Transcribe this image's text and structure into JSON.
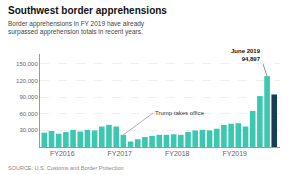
{
  "chart_data": {
    "type": "bar",
    "title": "Southwest border apprehensions",
    "subtitle": "Border apprehensions in FY 2019 have already surpassed apprehension totals in recent years.",
    "source": "SOURCE: U.S. Customs and Border Protection",
    "categories": [
      null,
      null,
      "FY2016",
      null,
      null,
      null,
      null,
      null,
      null,
      null,
      "FY2017",
      null,
      null,
      null,
      null,
      null,
      null,
      null,
      "FY2018",
      null,
      null,
      null,
      null,
      null,
      null,
      null,
      "FY2019",
      null,
      null,
      null,
      null,
      null,
      null
    ],
    "values": [
      26000,
      29000,
      24000,
      27000,
      31000,
      28000,
      31000,
      30000,
      37000,
      40000,
      37000,
      22000,
      10000,
      14000,
      18000,
      20000,
      22000,
      22000,
      23000,
      22000,
      27000,
      30000,
      31000,
      30000,
      33000,
      40000,
      42000,
      43000,
      37000,
      65000,
      92000,
      128000,
      94897
    ],
    "colors": [
      "#3cc8b0",
      "#3cc8b0",
      "#3cc8b0",
      "#3cc8b0",
      "#3cc8b0",
      "#3cc8b0",
      "#3cc8b0",
      "#3cc8b0",
      "#3cc8b0",
      "#3cc8b0",
      "#3cc8b0",
      "#3cc8b0",
      "#3cc8b0",
      "#3cc8b0",
      "#3cc8b0",
      "#3cc8b0",
      "#3cc8b0",
      "#3cc8b0",
      "#3cc8b0",
      "#3cc8b0",
      "#3cc8b0",
      "#3cc8b0",
      "#3cc8b0",
      "#3cc8b0",
      "#3cc8b0",
      "#3cc8b0",
      "#3cc8b0",
      "#3cc8b0",
      "#3cc8b0",
      "#3cc8b0",
      "#3cc8b0",
      "#3cc8b0",
      "#1b3d52"
    ],
    "ylim": [
      0,
      168000
    ],
    "yticks": [
      {
        "value": 30000,
        "label": "30,000"
      },
      {
        "value": 60000,
        "label": "60,000"
      },
      {
        "value": 90000,
        "label": "90,000"
      },
      {
        "value": 120000,
        "label": "120,000"
      },
      {
        "value": 150000,
        "label": "150,000"
      }
    ],
    "grid": true,
    "annotations": [
      {
        "text": "Trump takes office",
        "x": 11
      },
      {
        "text": "June 2019\n94,897",
        "x": 31
      }
    ]
  }
}
